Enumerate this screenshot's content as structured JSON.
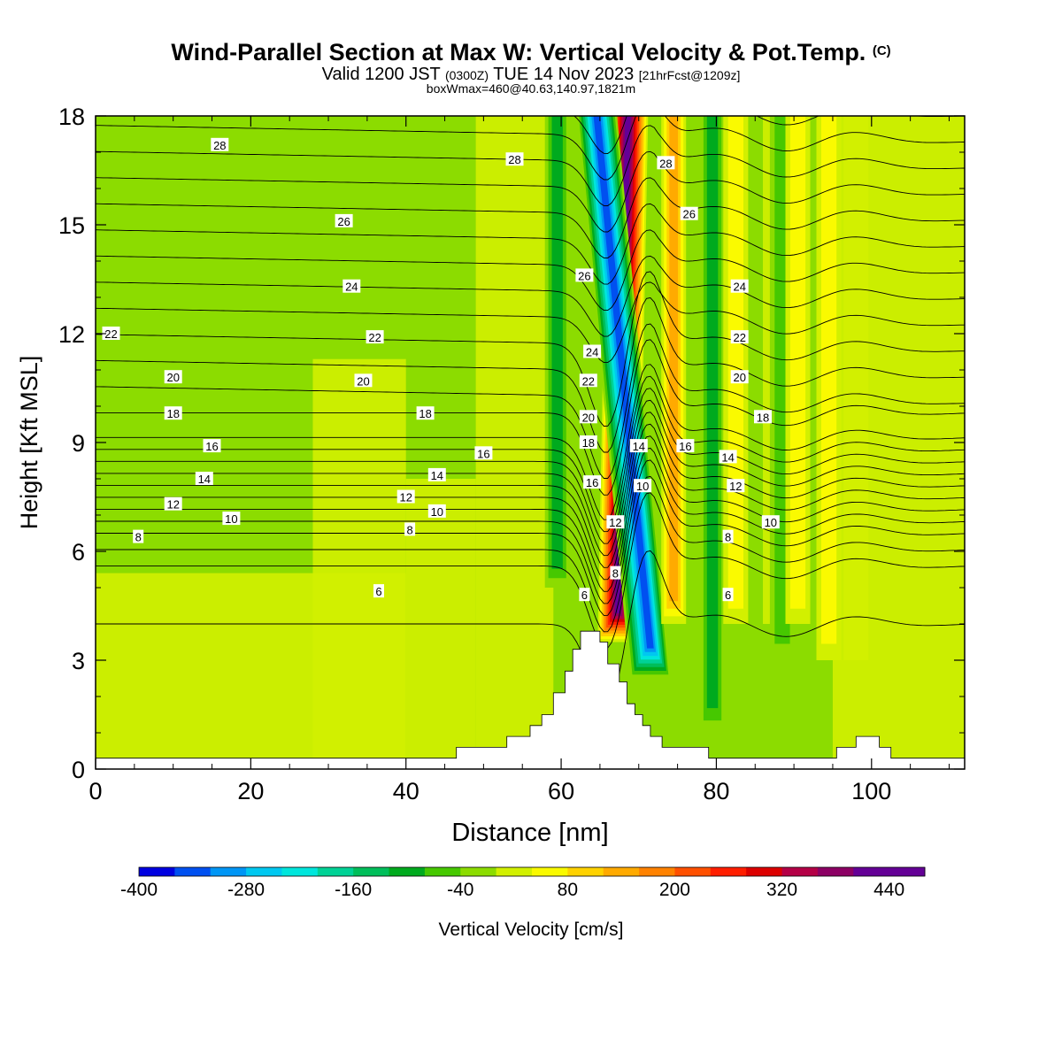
{
  "title": {
    "main": "Wind-Parallel Section at Max W: Vertical Velocity & Pot.Temp.",
    "copyright": "(C)",
    "valid_prefix": "Valid 1200 JST",
    "valid_utc": "(0300Z)",
    "valid_date": "TUE 14 Nov 2023",
    "forecast": "[21hrFcst@1209z]",
    "box": "boxWmax=460@40.63,140.97,1821m"
  },
  "colors": [
    "#0000e0",
    "#0050f0",
    "#0096f5",
    "#00c8f0",
    "#00e6dc",
    "#00d296",
    "#00be5a",
    "#00aa1e",
    "#46c800",
    "#8cdc00",
    "#d2f000",
    "#fafa00",
    "#ffd200",
    "#ffaa00",
    "#ff8200",
    "#ff5000",
    "#ff1e00",
    "#dc0000",
    "#b40046",
    "#8c0064",
    "#640096"
  ],
  "chart_data": {
    "type": "heatmap",
    "xlabel": "Distance [nm]",
    "ylabel": "Height [Kft MSL]",
    "xlim": [
      0,
      112
    ],
    "ylim": [
      0,
      18
    ],
    "xticks": [
      "0",
      "20",
      "40",
      "60",
      "80",
      "100"
    ],
    "yticks": [
      "0",
      "3",
      "6",
      "9",
      "12",
      "15",
      "18"
    ],
    "colorbar": {
      "label": "Vertical Velocity [cm/s]",
      "min": -400,
      "max": 480,
      "step": 40,
      "tick_labels": [
        "-400",
        "-280",
        "-160",
        "-40",
        "80",
        "200",
        "320",
        "440"
      ]
    },
    "vertical_velocity_features": [
      {
        "kind": "updraft",
        "x_top": 68.6,
        "x_bottom": 67.3,
        "y_range": [
          3.5,
          18
        ],
        "peak": 460
      },
      {
        "kind": "downdraft",
        "x_top": 64.6,
        "x_bottom": 71.5,
        "y_range": [
          2.5,
          18
        ],
        "peak": -360
      },
      {
        "kind": "updraft_weak",
        "x": 74.5,
        "y_range": [
          4,
          18
        ],
        "peak": 160
      },
      {
        "kind": "downdraft_weak",
        "x": 59.5,
        "y_range": [
          5,
          18
        ],
        "peak": -120
      },
      {
        "kind": "downdraft_weak",
        "x": 79.5,
        "y_range": [
          1,
          18
        ],
        "peak": -120
      },
      {
        "kind": "updraft_weak",
        "x": 82.5,
        "y_range": [
          4,
          18
        ],
        "peak": 80
      },
      {
        "kind": "downdraft_weak",
        "x": 88.5,
        "y_range": [
          3,
          18
        ],
        "peak": -80
      },
      {
        "kind": "updraft_weak",
        "x": 90.5,
        "y_range": [
          4,
          18
        ],
        "peak": 80
      },
      {
        "kind": "updraft_weak",
        "x": 94.5,
        "y_range": [
          3,
          18
        ],
        "peak": 80
      },
      {
        "kind": "updraft_weak",
        "x": 98,
        "y_range": [
          3,
          18
        ],
        "peak": 60
      }
    ],
    "terrain_kft": [
      [
        0,
        0.3
      ],
      [
        46.5,
        0.3
      ],
      [
        46.5,
        0.6
      ],
      [
        53,
        0.6
      ],
      [
        53,
        0.9
      ],
      [
        56,
        0.9
      ],
      [
        56,
        1.2
      ],
      [
        57.5,
        1.2
      ],
      [
        57.5,
        1.5
      ],
      [
        59,
        1.5
      ],
      [
        59,
        2.1
      ],
      [
        60.5,
        2.1
      ],
      [
        60.5,
        2.7
      ],
      [
        61.5,
        2.7
      ],
      [
        61.5,
        3.3
      ],
      [
        62.5,
        3.3
      ],
      [
        62.5,
        3.8
      ],
      [
        65,
        3.8
      ],
      [
        65,
        3.5
      ],
      [
        66,
        3.5
      ],
      [
        66,
        2.9
      ],
      [
        67.5,
        2.9
      ],
      [
        67.5,
        2.4
      ],
      [
        68.5,
        2.4
      ],
      [
        68.5,
        1.8
      ],
      [
        69.5,
        1.8
      ],
      [
        69.5,
        1.5
      ],
      [
        70.5,
        1.5
      ],
      [
        70.5,
        1.2
      ],
      [
        71.5,
        1.2
      ],
      [
        71.5,
        0.9
      ],
      [
        73,
        0.9
      ],
      [
        73,
        0.6
      ],
      [
        79,
        0.6
      ],
      [
        79,
        0.3
      ],
      [
        95.5,
        0.3
      ],
      [
        95.5,
        0.6
      ],
      [
        98,
        0.6
      ],
      [
        98,
        0.9
      ],
      [
        101,
        0.9
      ],
      [
        101,
        0.6
      ],
      [
        102.5,
        0.6
      ],
      [
        102.5,
        0.3
      ],
      [
        112,
        0.3
      ]
    ],
    "theta_contour_labels": [
      {
        "text": "28",
        "x": 16,
        "y": 17.2
      },
      {
        "text": "28",
        "x": 54,
        "y": 16.8
      },
      {
        "text": "28",
        "x": 73.5,
        "y": 16.7
      },
      {
        "text": "26",
        "x": 32,
        "y": 15.1
      },
      {
        "text": "26",
        "x": 76.5,
        "y": 15.3
      },
      {
        "text": "26",
        "x": 63,
        "y": 13.6
      },
      {
        "text": "24",
        "x": 33,
        "y": 13.3
      },
      {
        "text": "24",
        "x": 83,
        "y": 13.3
      },
      {
        "text": "24",
        "x": 64,
        "y": 11.5
      },
      {
        "text": "22",
        "x": 2,
        "y": 12
      },
      {
        "text": "22",
        "x": 36,
        "y": 11.9
      },
      {
        "text": "22",
        "x": 83,
        "y": 11.9
      },
      {
        "text": "22",
        "x": 63.5,
        "y": 10.7
      },
      {
        "text": "20",
        "x": 10,
        "y": 10.8
      },
      {
        "text": "20",
        "x": 34.5,
        "y": 10.7
      },
      {
        "text": "20",
        "x": 83,
        "y": 10.8
      },
      {
        "text": "20",
        "x": 63.5,
        "y": 9.7
      },
      {
        "text": "18",
        "x": 10,
        "y": 9.8
      },
      {
        "text": "18",
        "x": 42.5,
        "y": 9.8
      },
      {
        "text": "18",
        "x": 86,
        "y": 9.7
      },
      {
        "text": "18",
        "x": 63.5,
        "y": 9
      },
      {
        "text": "16",
        "x": 15,
        "y": 8.9
      },
      {
        "text": "16",
        "x": 50,
        "y": 8.7
      },
      {
        "text": "16",
        "x": 76,
        "y": 8.9
      },
      {
        "text": "16",
        "x": 64,
        "y": 7.9
      },
      {
        "text": "14",
        "x": 14,
        "y": 8
      },
      {
        "text": "14",
        "x": 44,
        "y": 8.1
      },
      {
        "text": "14",
        "x": 70,
        "y": 8.9
      },
      {
        "text": "14",
        "x": 81.5,
        "y": 8.6
      },
      {
        "text": "12",
        "x": 10,
        "y": 7.3
      },
      {
        "text": "12",
        "x": 40,
        "y": 7.5
      },
      {
        "text": "12",
        "x": 67,
        "y": 6.8
      },
      {
        "text": "12",
        "x": 82.5,
        "y": 7.8
      },
      {
        "text": "10",
        "x": 17.5,
        "y": 6.9
      },
      {
        "text": "10",
        "x": 44,
        "y": 7.1
      },
      {
        "text": "10",
        "x": 70.5,
        "y": 7.8
      },
      {
        "text": "10",
        "x": 87,
        "y": 6.8
      },
      {
        "text": "8",
        "x": 5.5,
        "y": 6.4
      },
      {
        "text": "8",
        "x": 40.5,
        "y": 6.6
      },
      {
        "text": "8",
        "x": 67,
        "y": 5.4
      },
      {
        "text": "8",
        "x": 81.5,
        "y": 6.4
      },
      {
        "text": "6",
        "x": 36.5,
        "y": 4.9
      },
      {
        "text": "6",
        "x": 63,
        "y": 4.8
      },
      {
        "text": "6",
        "x": 81.5,
        "y": 4.8
      }
    ]
  }
}
